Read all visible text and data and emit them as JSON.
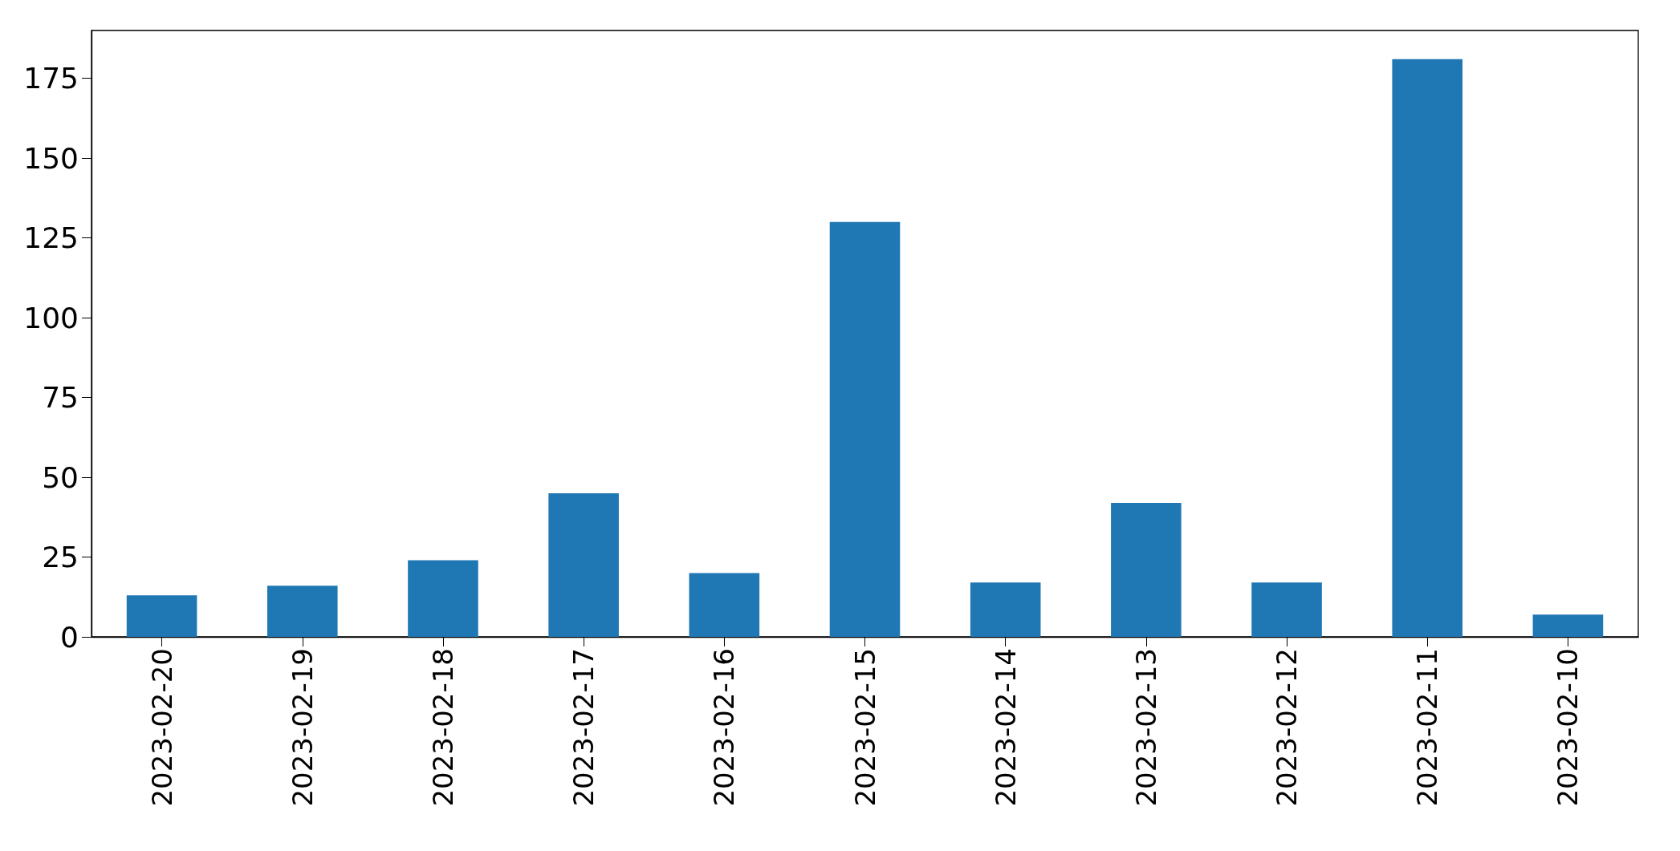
{
  "chart_data": {
    "type": "bar",
    "categories": [
      "2023-02-20",
      "2023-02-19",
      "2023-02-18",
      "2023-02-17",
      "2023-02-16",
      "2023-02-15",
      "2023-02-14",
      "2023-02-13",
      "2023-02-12",
      "2023-02-11",
      "2023-02-10"
    ],
    "values": [
      13,
      16,
      24,
      45,
      20,
      130,
      17,
      42,
      17,
      181,
      7
    ],
    "color": "#1f77b4",
    "ylim": [
      0,
      190
    ],
    "yticks": [
      0,
      25,
      50,
      75,
      100,
      125,
      150,
      175
    ]
  }
}
